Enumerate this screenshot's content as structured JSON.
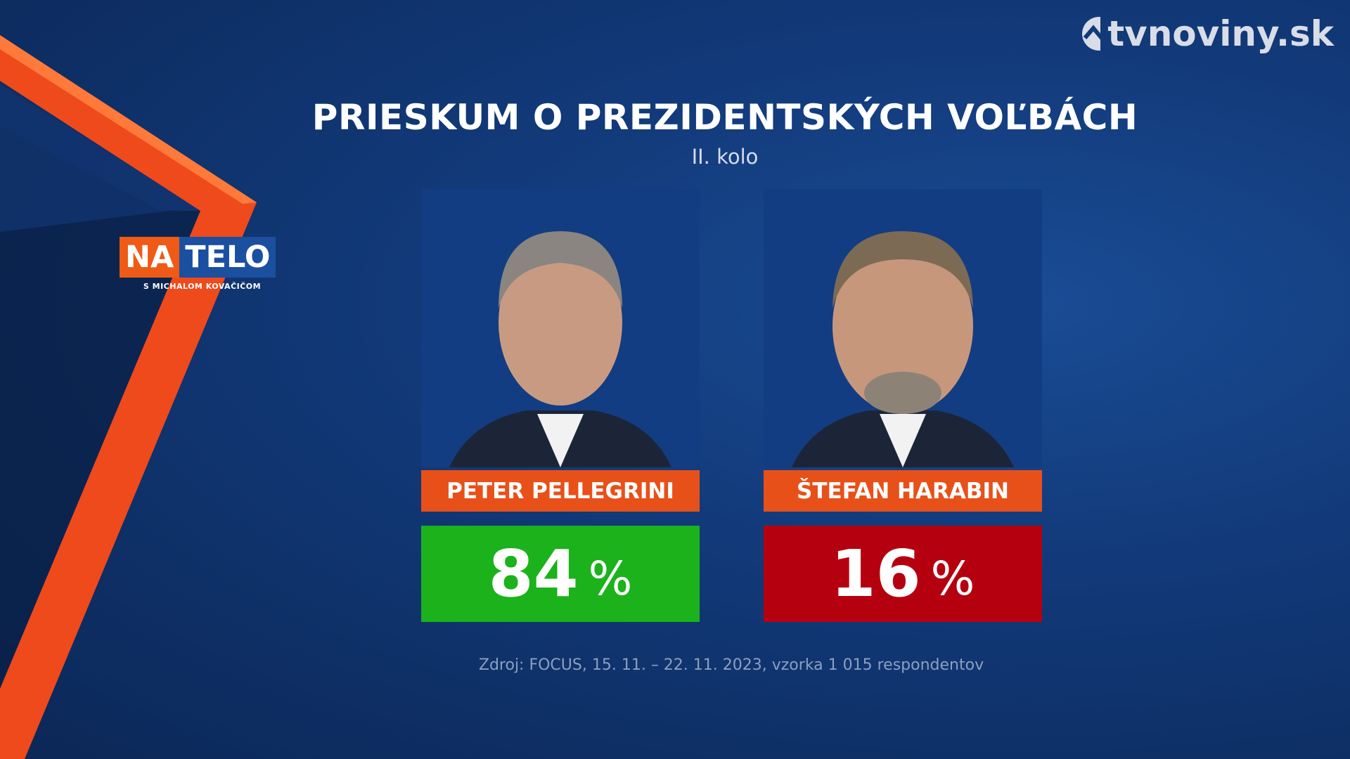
{
  "brand": "tvnoviny.sk",
  "show": {
    "logo_left": "NA",
    "logo_right": "TELO",
    "tagline": "S MICHALOM KOVAČIČOM"
  },
  "title": "PRIESKUM O PREZIDENTSKÝCH VOĽBÁCH",
  "subtitle": "II. kolo",
  "candidates": [
    {
      "name": "PETER PELLEGRINI",
      "value": 84,
      "unit": "%",
      "color": "#1bb21b"
    },
    {
      "name": "ŠTEFAN HARABIN",
      "value": 16,
      "unit": "%",
      "color": "#b5000f"
    }
  ],
  "source": "Zdroj: FOCUS, 15. 11. – 22. 11. 2023, vzorka 1 015 respondentov"
}
